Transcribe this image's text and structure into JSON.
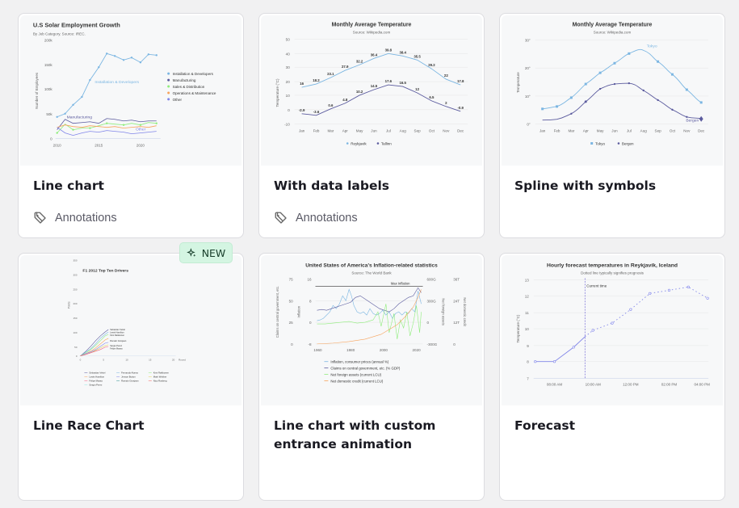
{
  "cards": [
    {
      "title": "Line chart",
      "tag": "Annotations",
      "chart": {
        "title": "U.S Solar Employment Growth",
        "subtitle": "By Job Category. Source: IREC.",
        "yaxis": "Number of Employees",
        "yticks": [
          "200k",
          "150k",
          "100k",
          "50k",
          "0"
        ],
        "xticks": [
          "2010",
          "2015",
          "2020"
        ],
        "legend": [
          "Installation & Developers",
          "Manufacturing",
          "Sales & Distribution",
          "Operations & Maintenance",
          "Other"
        ],
        "annotations": [
          "Installation & Developers",
          "Manufacturing",
          "Other"
        ],
        "colors": [
          "#7bb6e2",
          "#5b5b9e",
          "#90ed7d",
          "#f7a35c",
          "#8085e9"
        ]
      }
    },
    {
      "title": "With data labels",
      "tag": "Annotations",
      "chart": {
        "title": "Monthly Average Temperature",
        "subtitle": "Source: Wikipedia.com",
        "yaxis": "Temperature (°C)",
        "yticks": [
          "50",
          "40",
          "30",
          "20",
          "10",
          "0",
          "-10"
        ],
        "months": [
          "Jan",
          "Feb",
          "Mar",
          "Apr",
          "May",
          "Jun",
          "Jul",
          "Aug",
          "Sep",
          "Oct",
          "Nov",
          "Dec"
        ],
        "reykjavik": [
          "16",
          "18.2",
          "23.1",
          "27.9",
          "32.2",
          "36.4",
          "39.8",
          "38.4",
          "35.5",
          "29.2",
          "22",
          "17.8"
        ],
        "tallinn": [
          "-2.9",
          "-3.6",
          "0.6",
          "4.8",
          "10.2",
          "14.5",
          "17.6",
          "16.5",
          "12",
          "6.5",
          "2",
          "-0.9"
        ],
        "legend": [
          "Reykjavik",
          "Tallinn"
        ]
      }
    },
    {
      "title": "Spline with symbols",
      "chart": {
        "title": "Monthly Average Temperature",
        "subtitle": "Source: Wikipedia.com",
        "yaxis": "Temperature",
        "yticks": [
          "30°",
          "20°",
          "10°",
          "0°"
        ],
        "months": [
          "Jan",
          "Feb",
          "Mar",
          "Apr",
          "May",
          "Jun",
          "Jul",
          "Aug",
          "Sep",
          "Oct",
          "Nov",
          "Dec"
        ],
        "labels": [
          "Tokyo",
          "Bergen"
        ],
        "legend": [
          "Tokyo",
          "Bergen"
        ]
      }
    },
    {
      "title": "Line Race Chart",
      "badge": "NEW",
      "chart": {
        "title": "F1 2012 Top Ten Drivers",
        "yaxis": "Points",
        "yticks": [
          "350",
          "300",
          "250",
          "200",
          "150",
          "100",
          "50",
          "0"
        ],
        "xticks": [
          "0",
          "5",
          "10",
          "15",
          "20"
        ],
        "xlabel": "Round",
        "drivers": [
          "Sebastian Vettel",
          "Lewis Hamilton",
          "Kimi Raikkonen",
          "Romain Grosjean",
          "Sergio Perez",
          "Felipe Massa"
        ],
        "legend": [
          "Sebastian Vettel",
          "Fernando Alonso",
          "Kimi Raikkonen",
          "Lewis Hamilton",
          "Jenson Button",
          "Mark Webber",
          "Felipe Massa",
          "Romain Grosjean",
          "Nico Rosberg",
          "Sergio Perez"
        ]
      }
    },
    {
      "title": "Line chart with custom entrance animation",
      "chart": {
        "title": "United States of America's Inflation-related statistics",
        "subtitle": "Source: The World Bank",
        "y1": [
          "75",
          "50",
          "25",
          "0"
        ],
        "y2": [
          "16",
          "8",
          "0",
          "-8"
        ],
        "y3": [
          "600G",
          "300G",
          "0",
          "-300G"
        ],
        "y4": [
          "36T",
          "24T",
          "12T",
          "0"
        ],
        "xticks": [
          "1960",
          "1980",
          "2000",
          "2020"
        ],
        "plotline": "Max Inflation",
        "ytitle1": "Claims on central government, etc.",
        "ytitle2": "Inflation",
        "ytitle3": "Net foreign assets",
        "ytitle4": "Net domestic credit",
        "legend": [
          "Inflation, consumer prices (annual %)",
          "Claims on central government, etc. (% GDP)",
          "Net foreign assets (current LCU)",
          "Net domestic credit (current LCU)"
        ]
      }
    },
    {
      "title": "Forecast",
      "chart": {
        "title": "Hourly forecast temperatures in Reykjavík, Iceland",
        "subtitle": "Dotted line typically signifies prognosis",
        "yaxis": "Temperature (°C)",
        "yticks": [
          "13",
          "12",
          "11",
          "10",
          "9",
          "8",
          "7"
        ],
        "xticks": [
          "08:00 AM",
          "10:00 AM",
          "12:00 PM",
          "02:00 PM",
          "04:00 PM"
        ],
        "currentTime": "Current time"
      }
    }
  ],
  "colors": {
    "blue": "#7bb6e2",
    "navy": "#5b5b9e",
    "accent": "#5a4fcf"
  }
}
